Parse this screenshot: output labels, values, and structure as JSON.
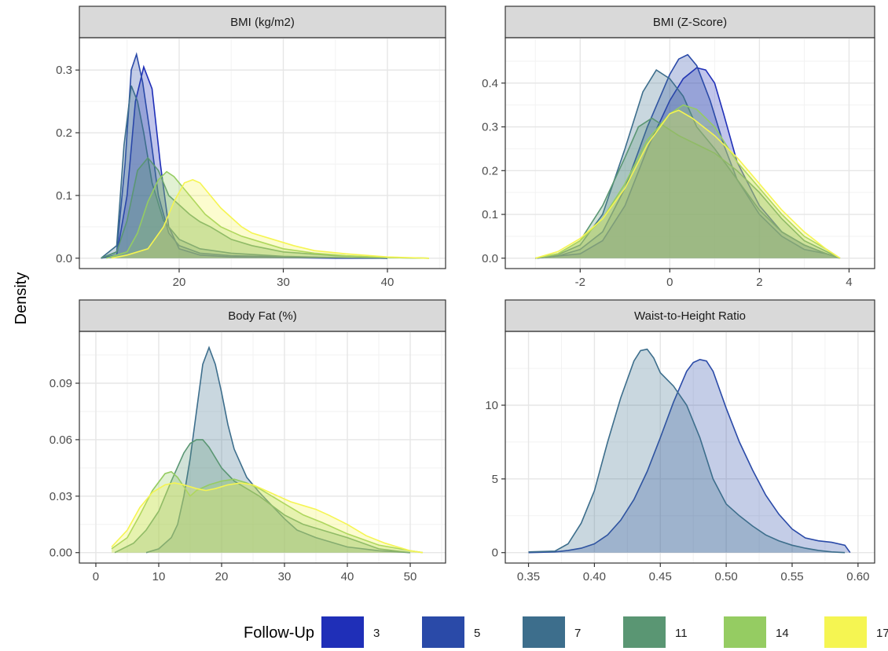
{
  "figure": {
    "ylabel": "Density",
    "legend": {
      "title": "Follow-Up",
      "placement": "bottom",
      "items": [
        {
          "label": "3",
          "color": "#1f2fb8"
        },
        {
          "label": "5",
          "color": "#2a4aa8"
        },
        {
          "label": "7",
          "color": "#3d6e8c"
        },
        {
          "label": "11",
          "color": "#5a9673"
        },
        {
          "label": "14",
          "color": "#95cc62"
        },
        {
          "label": "17",
          "color": "#f5f552"
        }
      ]
    }
  },
  "chart_data": [
    {
      "type": "area",
      "title": "BMI (kg/m2)",
      "xlim": [
        12,
        44
      ],
      "ylim": [
        0,
        0.335
      ],
      "xticks": [
        20,
        30,
        40
      ],
      "yticks": [
        0.0,
        0.1,
        0.2,
        0.3
      ],
      "yticklabels": [
        "0.0",
        "0.1",
        "0.2",
        "0.3"
      ],
      "grid": true,
      "series": [
        {
          "name": "3",
          "color": "#1f2fb8",
          "x": [
            12.5,
            14,
            15,
            15.8,
            16.6,
            17.4,
            18.2,
            19,
            20,
            22,
            25,
            30,
            35,
            40
          ],
          "y": [
            0.0,
            0.005,
            0.1,
            0.25,
            0.305,
            0.27,
            0.15,
            0.05,
            0.015,
            0.005,
            0.002,
            0.001,
            0.0,
            0.0
          ]
        },
        {
          "name": "5",
          "color": "#2a4aa8",
          "x": [
            12.5,
            14,
            14.8,
            15.4,
            15.9,
            16.5,
            17.2,
            18,
            19,
            20,
            22,
            25,
            30,
            35,
            40
          ],
          "y": [
            0.0,
            0.01,
            0.15,
            0.3,
            0.325,
            0.28,
            0.2,
            0.1,
            0.04,
            0.02,
            0.008,
            0.004,
            0.002,
            0.001,
            0.0
          ]
        },
        {
          "name": "7",
          "color": "#3d6e8c",
          "x": [
            12.5,
            14,
            14.7,
            15.4,
            16,
            16.6,
            17.4,
            18.5,
            20,
            22,
            25,
            30,
            35,
            40
          ],
          "y": [
            0.0,
            0.02,
            0.18,
            0.275,
            0.25,
            0.2,
            0.12,
            0.06,
            0.03,
            0.015,
            0.008,
            0.003,
            0.001,
            0.0
          ]
        },
        {
          "name": "11",
          "color": "#5a9673",
          "x": [
            12.5,
            14,
            15,
            16,
            17,
            18,
            19,
            20,
            21,
            22,
            23,
            24,
            25,
            27,
            30,
            35,
            40,
            44
          ],
          "y": [
            0.0,
            0.01,
            0.06,
            0.14,
            0.16,
            0.14,
            0.1,
            0.085,
            0.07,
            0.058,
            0.05,
            0.04,
            0.03,
            0.02,
            0.01,
            0.004,
            0.001,
            0.0
          ]
        },
        {
          "name": "14",
          "color": "#95cc62",
          "x": [
            13,
            15,
            16,
            17,
            18,
            18.8,
            19.5,
            20.5,
            21.5,
            22.5,
            24,
            26,
            28,
            30,
            33,
            36,
            40,
            44
          ],
          "y": [
            0.0,
            0.01,
            0.04,
            0.09,
            0.125,
            0.138,
            0.13,
            0.11,
            0.09,
            0.07,
            0.05,
            0.035,
            0.025,
            0.015,
            0.008,
            0.004,
            0.001,
            0.0
          ]
        },
        {
          "name": "17",
          "color": "#f5f552",
          "x": [
            13.5,
            15,
            17,
            18.5,
            19.5,
            20.5,
            21.3,
            22,
            23,
            24,
            25,
            26,
            27,
            29,
            31,
            33,
            36,
            40,
            44
          ],
          "y": [
            0.0,
            0.005,
            0.015,
            0.05,
            0.09,
            0.12,
            0.125,
            0.12,
            0.1,
            0.08,
            0.065,
            0.05,
            0.04,
            0.03,
            0.02,
            0.012,
            0.007,
            0.002,
            0.0
          ]
        }
      ]
    },
    {
      "type": "area",
      "title": "BMI (Z-Score)",
      "xlim": [
        -3.3,
        4.2
      ],
      "ylim": [
        0,
        0.48
      ],
      "xticks": [
        -2,
        0,
        2,
        4
      ],
      "yticks": [
        0.0,
        0.1,
        0.2,
        0.3,
        0.4
      ],
      "yticklabels": [
        "0.0",
        "0.1",
        "0.2",
        "0.3",
        "0.4"
      ],
      "grid": true,
      "series": [
        {
          "name": "3",
          "color": "#1f2fb8",
          "x": [
            -3.0,
            -2.5,
            -2.0,
            -1.5,
            -1.0,
            -0.5,
            0.0,
            0.3,
            0.6,
            0.8,
            1.0,
            1.2,
            1.5,
            2.0,
            2.5,
            3.0,
            3.5,
            3.8
          ],
          "y": [
            0.0,
            0.005,
            0.01,
            0.04,
            0.12,
            0.25,
            0.36,
            0.41,
            0.435,
            0.43,
            0.4,
            0.33,
            0.22,
            0.12,
            0.06,
            0.03,
            0.01,
            0.0
          ]
        },
        {
          "name": "5",
          "color": "#2a4aa8",
          "x": [
            -3.0,
            -2.5,
            -2.0,
            -1.5,
            -1.0,
            -0.5,
            0.0,
            0.2,
            0.4,
            0.6,
            0.9,
            1.2,
            1.5,
            2.0,
            2.5,
            3.0,
            3.5,
            3.8
          ],
          "y": [
            0.0,
            0.005,
            0.02,
            0.06,
            0.16,
            0.3,
            0.42,
            0.455,
            0.465,
            0.44,
            0.36,
            0.26,
            0.18,
            0.1,
            0.05,
            0.02,
            0.01,
            0.0
          ]
        },
        {
          "name": "7",
          "color": "#3d6e8c",
          "x": [
            -3.0,
            -2.5,
            -2.0,
            -1.5,
            -1.0,
            -0.6,
            -0.3,
            0.0,
            0.3,
            0.6,
            1.0,
            1.5,
            2.0,
            2.5,
            3.0,
            3.5,
            3.8
          ],
          "y": [
            0.0,
            0.008,
            0.03,
            0.1,
            0.25,
            0.38,
            0.43,
            0.41,
            0.37,
            0.3,
            0.25,
            0.18,
            0.11,
            0.06,
            0.03,
            0.01,
            0.0
          ]
        },
        {
          "name": "11",
          "color": "#5a9673",
          "x": [
            -3.0,
            -2.5,
            -2.0,
            -1.5,
            -1.0,
            -0.7,
            -0.4,
            -0.1,
            0.2,
            0.6,
            1.0,
            1.5,
            2.0,
            2.5,
            3.0,
            3.5,
            3.8
          ],
          "y": [
            0.0,
            0.01,
            0.04,
            0.12,
            0.23,
            0.3,
            0.32,
            0.3,
            0.28,
            0.26,
            0.24,
            0.2,
            0.15,
            0.09,
            0.04,
            0.015,
            0.0
          ]
        },
        {
          "name": "14",
          "color": "#95cc62",
          "x": [
            -3.0,
            -2.5,
            -2.0,
            -1.5,
            -1.0,
            -0.5,
            0.0,
            0.3,
            0.6,
            1.0,
            1.5,
            2.0,
            2.5,
            3.0,
            3.5,
            3.8
          ],
          "y": [
            0.0,
            0.01,
            0.04,
            0.09,
            0.17,
            0.27,
            0.33,
            0.35,
            0.34,
            0.3,
            0.22,
            0.16,
            0.1,
            0.05,
            0.02,
            0.0
          ]
        },
        {
          "name": "17",
          "color": "#f5f552",
          "x": [
            -3.0,
            -2.5,
            -2.0,
            -1.5,
            -1.0,
            -0.5,
            0.0,
            0.2,
            0.5,
            1.0,
            1.5,
            2.0,
            2.5,
            3.0,
            3.5,
            3.8
          ],
          "y": [
            0.0,
            0.015,
            0.045,
            0.09,
            0.16,
            0.26,
            0.33,
            0.338,
            0.32,
            0.28,
            0.23,
            0.17,
            0.11,
            0.06,
            0.02,
            0.0
          ]
        }
      ]
    },
    {
      "type": "area",
      "title": "Body Fat (%)",
      "xlim": [
        0,
        53
      ],
      "ylim": [
        0,
        0.112
      ],
      "xticks": [
        0,
        10,
        20,
        30,
        40,
        50
      ],
      "yticks": [
        0.0,
        0.03,
        0.06,
        0.09
      ],
      "yticklabels": [
        "0.00",
        "0.03",
        "0.06",
        "0.09"
      ],
      "grid": true,
      "series": [
        {
          "name": "7",
          "color": "#3d6e8c",
          "x": [
            8,
            10,
            12,
            13,
            14,
            15,
            16,
            17,
            18,
            19,
            20,
            21,
            22,
            24,
            26,
            28,
            30,
            32,
            35,
            40,
            45,
            50
          ],
          "y": [
            0.0,
            0.002,
            0.008,
            0.015,
            0.03,
            0.05,
            0.075,
            0.1,
            0.109,
            0.1,
            0.085,
            0.068,
            0.055,
            0.04,
            0.032,
            0.025,
            0.018,
            0.012,
            0.008,
            0.003,
            0.001,
            0.0
          ]
        },
        {
          "name": "11",
          "color": "#5a9673",
          "x": [
            3,
            6,
            8,
            10,
            12,
            14,
            15,
            16,
            17,
            18,
            20,
            22,
            24,
            26,
            28,
            30,
            33,
            36,
            40,
            45,
            50
          ],
          "y": [
            0.0,
            0.005,
            0.012,
            0.022,
            0.038,
            0.053,
            0.058,
            0.06,
            0.06,
            0.056,
            0.045,
            0.038,
            0.034,
            0.03,
            0.025,
            0.02,
            0.015,
            0.012,
            0.008,
            0.002,
            0.0
          ]
        },
        {
          "name": "14",
          "color": "#95cc62",
          "x": [
            2.5,
            5,
            7,
            9,
            11,
            12,
            13,
            14,
            15,
            16,
            18,
            20,
            22,
            24,
            26,
            28,
            30,
            33,
            36,
            40,
            45,
            50,
            52
          ],
          "y": [
            0.002,
            0.008,
            0.02,
            0.033,
            0.042,
            0.043,
            0.04,
            0.035,
            0.03,
            0.033,
            0.036,
            0.038,
            0.039,
            0.037,
            0.034,
            0.03,
            0.026,
            0.02,
            0.016,
            0.01,
            0.004,
            0.001,
            0.0
          ]
        },
        {
          "name": "17",
          "color": "#f5f552",
          "x": [
            2.5,
            5,
            7,
            9,
            11,
            12.5,
            14,
            16,
            17.5,
            19,
            21,
            23,
            25,
            27,
            29,
            31,
            33,
            35,
            37,
            40,
            43,
            46,
            50,
            52
          ],
          "y": [
            0.003,
            0.012,
            0.024,
            0.032,
            0.036,
            0.037,
            0.036,
            0.034,
            0.033,
            0.034,
            0.036,
            0.037,
            0.036,
            0.033,
            0.03,
            0.027,
            0.025,
            0.023,
            0.02,
            0.015,
            0.009,
            0.005,
            0.001,
            0.0
          ]
        }
      ]
    },
    {
      "type": "area",
      "title": "Waist-to-Height Ratio",
      "xlim": [
        0.345,
        0.6
      ],
      "ylim": [
        0,
        14.3
      ],
      "xticks": [
        0.35,
        0.4,
        0.45,
        0.5,
        0.55,
        0.6
      ],
      "yticks": [
        0,
        5,
        10
      ],
      "xticklabels": [
        "0.35",
        "0.40",
        "0.45",
        "0.50",
        "0.55",
        "0.60"
      ],
      "yticklabels": [
        "0",
        "5",
        "10"
      ],
      "grid": true,
      "series": [
        {
          "name": "5",
          "color": "#2a4aa8",
          "x": [
            0.35,
            0.37,
            0.38,
            0.39,
            0.4,
            0.41,
            0.42,
            0.43,
            0.44,
            0.45,
            0.46,
            0.47,
            0.475,
            0.48,
            0.485,
            0.49,
            0.5,
            0.51,
            0.52,
            0.53,
            0.54,
            0.55,
            0.56,
            0.57,
            0.58,
            0.59,
            0.594
          ],
          "y": [
            0.0,
            0.05,
            0.15,
            0.3,
            0.6,
            1.2,
            2.2,
            3.6,
            5.5,
            7.8,
            10.2,
            12.3,
            12.9,
            13.1,
            13.0,
            12.3,
            9.8,
            7.5,
            5.6,
            3.9,
            2.6,
            1.6,
            1.0,
            0.8,
            0.7,
            0.5,
            0.0
          ]
        },
        {
          "name": "7",
          "color": "#3d6e8c",
          "x": [
            0.35,
            0.37,
            0.38,
            0.39,
            0.4,
            0.41,
            0.42,
            0.43,
            0.435,
            0.44,
            0.445,
            0.45,
            0.46,
            0.47,
            0.48,
            0.49,
            0.5,
            0.51,
            0.52,
            0.53,
            0.54,
            0.55,
            0.56,
            0.57,
            0.58,
            0.59
          ],
          "y": [
            0.05,
            0.1,
            0.6,
            2.0,
            4.2,
            7.5,
            10.5,
            13.0,
            13.7,
            13.8,
            13.2,
            12.2,
            11.3,
            10.0,
            7.8,
            5.0,
            3.3,
            2.5,
            1.8,
            1.2,
            0.8,
            0.5,
            0.3,
            0.15,
            0.05,
            0.0
          ]
        }
      ]
    }
  ]
}
